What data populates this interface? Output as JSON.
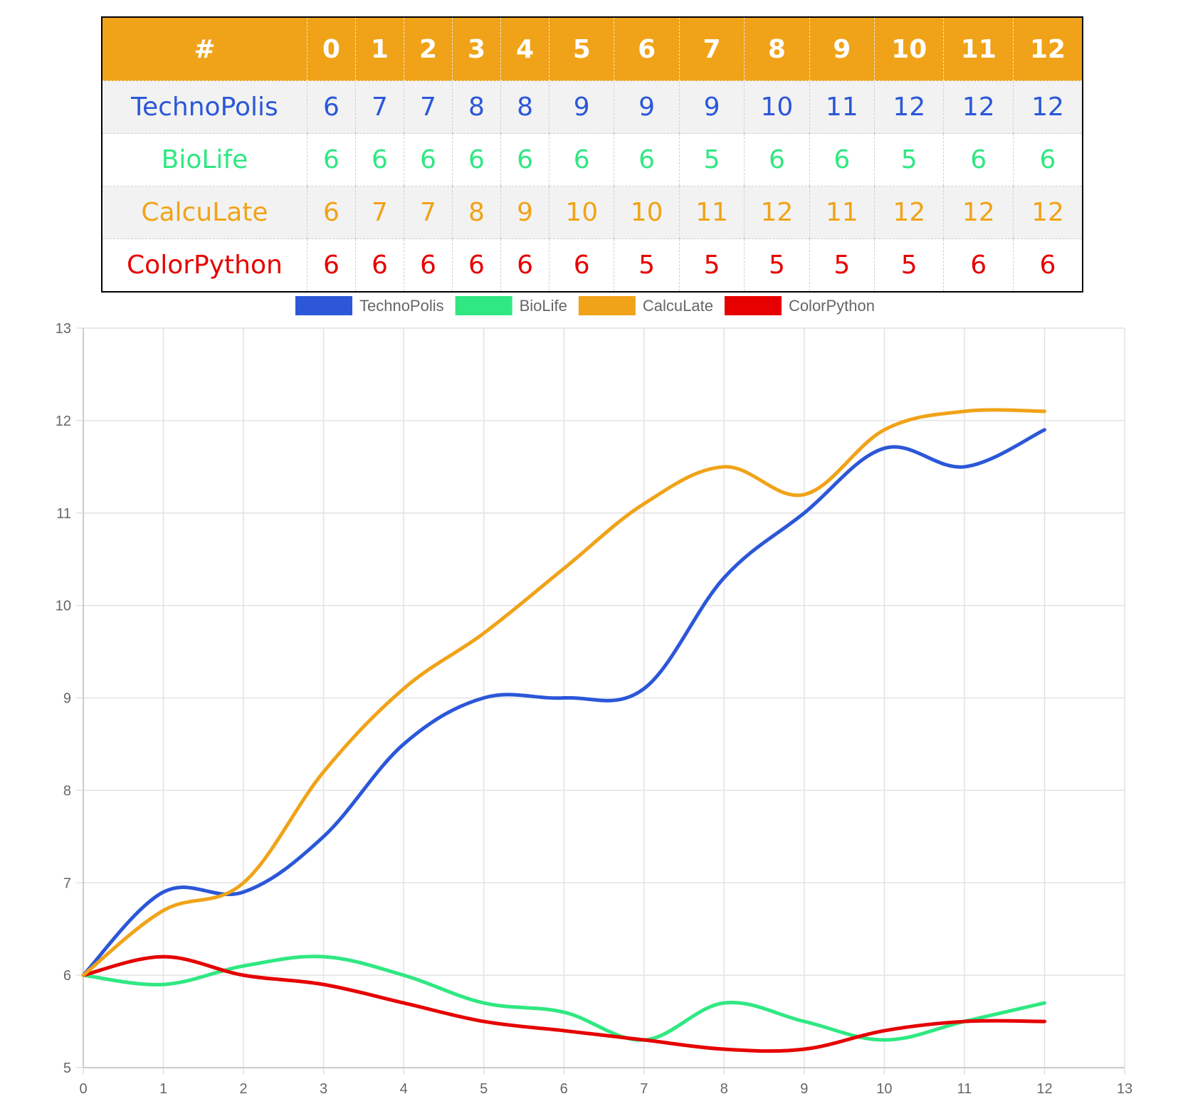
{
  "table": {
    "header_label": "#",
    "columns": [
      "0",
      "1",
      "2",
      "3",
      "4",
      "5",
      "6",
      "7",
      "8",
      "9",
      "10",
      "11",
      "12"
    ],
    "rows": [
      {
        "name": "TechnoPolis",
        "color": "#2b57d8",
        "values": [
          "6",
          "7",
          "7",
          "8",
          "8",
          "9",
          "9",
          "9",
          "10",
          "11",
          "12",
          "12",
          "12"
        ]
      },
      {
        "name": "BioLife",
        "color": "#2fe882",
        "values": [
          "6",
          "6",
          "6",
          "6",
          "6",
          "6",
          "6",
          "5",
          "6",
          "6",
          "5",
          "6",
          "6"
        ]
      },
      {
        "name": "CalcuLate",
        "color": "#f0a318",
        "values": [
          "6",
          "7",
          "7",
          "8",
          "9",
          "10",
          "10",
          "11",
          "12",
          "11",
          "12",
          "12",
          "12"
        ]
      },
      {
        "name": "ColorPython",
        "color": "#e60000",
        "values": [
          "6",
          "6",
          "6",
          "6",
          "6",
          "6",
          "5",
          "5",
          "5",
          "5",
          "5",
          "6",
          "6"
        ]
      }
    ]
  },
  "chart_data": {
    "type": "line",
    "title": "",
    "xlabel": "",
    "ylabel": "",
    "xlim": [
      0,
      13
    ],
    "ylim": [
      5,
      13
    ],
    "x_ticks": [
      "0",
      "1",
      "2",
      "3",
      "4",
      "5",
      "6",
      "7",
      "8",
      "9",
      "10",
      "11",
      "12",
      "13"
    ],
    "y_ticks": [
      "5",
      "6",
      "7",
      "8",
      "9",
      "10",
      "11",
      "12",
      "13"
    ],
    "grid": true,
    "legend_position": "top",
    "x": [
      0,
      1,
      2,
      3,
      4,
      5,
      6,
      7,
      8,
      9,
      10,
      11,
      12
    ],
    "series": [
      {
        "name": "TechnoPolis",
        "color": "#2b57d8",
        "values": [
          6,
          6.9,
          6.9,
          7.5,
          8.5,
          9,
          9,
          9.1,
          10.3,
          11,
          11.7,
          11.5,
          11.9
        ]
      },
      {
        "name": "BioLife",
        "color": "#2fe882",
        "values": [
          6,
          5.9,
          6.1,
          6.2,
          6,
          5.7,
          5.6,
          5.3,
          5.7,
          5.5,
          5.3,
          5.5,
          5.7
        ]
      },
      {
        "name": "CalcuLate",
        "color": "#f0a318",
        "values": [
          6,
          6.7,
          7,
          8.2,
          9.1,
          9.7,
          10.4,
          11.1,
          11.5,
          11.2,
          11.9,
          12.1,
          12.1
        ]
      },
      {
        "name": "ColorPython",
        "color": "#e60000",
        "values": [
          6,
          6.2,
          6,
          5.9,
          5.7,
          5.5,
          5.4,
          5.3,
          5.2,
          5.2,
          5.4,
          5.5,
          5.5
        ]
      }
    ]
  }
}
